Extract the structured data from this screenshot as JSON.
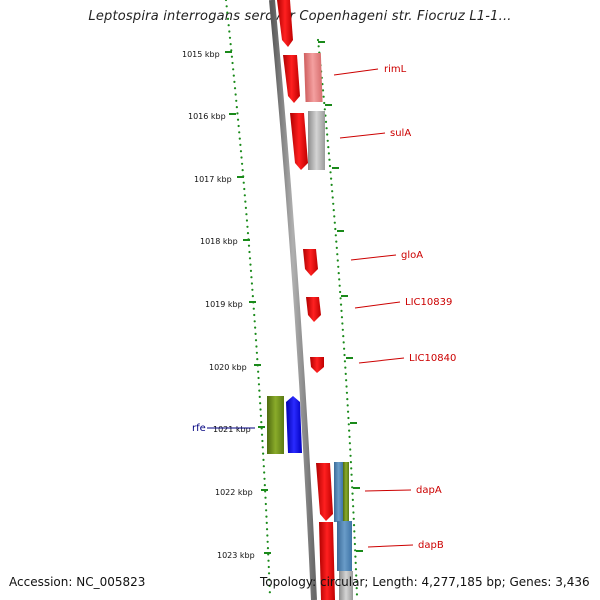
{
  "title": "Leptospira interrogans serovar Copenhageni str. Fiocruz L1-1...",
  "accession": "Accession: NC_005823",
  "summary": "Topology: circular; Length: 4,277,185 bp; Genes: 3,436",
  "colors": {
    "tick": "#1a8a1a",
    "backbone": "#8a8a8a",
    "gene_red": "#ff1010",
    "gene_pink": "#f08080",
    "gene_gray": "#b8b8b8",
    "gene_green": "#6e8f1a",
    "gene_blue": "#1010ff",
    "gene_steel": "#4f86b8",
    "label_red": "#cc0000",
    "label_navy": "#000080"
  },
  "ticks": [
    "1015 kbp",
    "1016 kbp",
    "1017 kbp",
    "1018 kbp",
    "1019 kbp",
    "1020 kbp",
    "1021 kbp",
    "1022 kbp",
    "1023 kbp"
  ],
  "gene_labels": [
    {
      "name": "rimL",
      "color": "red"
    },
    {
      "name": "sulA",
      "color": "red"
    },
    {
      "name": "gloA",
      "color": "red"
    },
    {
      "name": "LIC10839",
      "color": "red"
    },
    {
      "name": "LIC10840",
      "color": "red"
    },
    {
      "name": "rfe",
      "color": "navy"
    },
    {
      "name": "dapA",
      "color": "red"
    },
    {
      "name": "dapB",
      "color": "red"
    }
  ]
}
